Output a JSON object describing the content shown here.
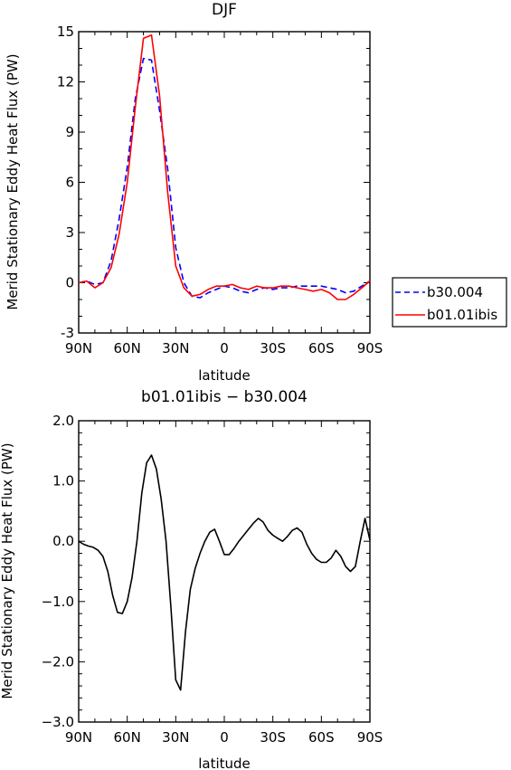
{
  "chart_data": [
    {
      "type": "line",
      "title": "DJF",
      "xlabel": "latitude",
      "ylabel": "Merid Stationary Eddy Heat Flux (PW)",
      "xlim": [
        90,
        -90
      ],
      "ylim": [
        -3,
        15
      ],
      "x_ticks": [
        90,
        60,
        30,
        0,
        -30,
        -60,
        -90
      ],
      "x_tick_labels": [
        "90N",
        "60N",
        "30N",
        "0",
        "30S",
        "60S",
        "90S"
      ],
      "y_ticks": [
        -3,
        0,
        3,
        6,
        9,
        12,
        15
      ],
      "y_tick_labels": [
        "-3",
        "0",
        "3",
        "6",
        "9",
        "12",
        "15"
      ],
      "grid": false,
      "legend_position": "right",
      "series": [
        {
          "name": "b30.004",
          "color": "#0000ff",
          "dash": "dashed",
          "x": [
            90,
            85,
            80,
            75,
            70,
            65,
            60,
            55,
            50,
            45,
            40,
            35,
            30,
            25,
            20,
            15,
            10,
            5,
            0,
            -5,
            -10,
            -15,
            -20,
            -25,
            -30,
            -35,
            -40,
            -45,
            -50,
            -55,
            -60,
            -65,
            -70,
            -75,
            -80,
            -85,
            -90
          ],
          "values": [
            0.0,
            0.1,
            -0.1,
            0.0,
            1.3,
            3.8,
            6.9,
            11.0,
            13.4,
            13.3,
            10.3,
            6.8,
            2.1,
            0.0,
            -0.8,
            -0.9,
            -0.6,
            -0.4,
            -0.2,
            -0.3,
            -0.5,
            -0.6,
            -0.4,
            -0.3,
            -0.4,
            -0.3,
            -0.3,
            -0.2,
            -0.2,
            -0.2,
            -0.2,
            -0.3,
            -0.4,
            -0.6,
            -0.5,
            -0.2,
            0.1
          ]
        },
        {
          "name": "b01.01ibis",
          "color": "#ff0000",
          "dash": "solid",
          "x": [
            90,
            85,
            80,
            75,
            70,
            65,
            60,
            55,
            50,
            45,
            40,
            35,
            30,
            25,
            20,
            15,
            10,
            5,
            0,
            -5,
            -10,
            -15,
            -20,
            -25,
            -30,
            -35,
            -40,
            -45,
            -50,
            -55,
            -60,
            -65,
            -70,
            -75,
            -80,
            -85,
            -90
          ],
          "values": [
            0.0,
            0.1,
            -0.3,
            0.0,
            0.9,
            2.9,
            6.0,
            10.5,
            14.6,
            14.8,
            11.2,
            5.4,
            1.0,
            -0.3,
            -0.8,
            -0.7,
            -0.4,
            -0.2,
            -0.2,
            -0.1,
            -0.3,
            -0.4,
            -0.2,
            -0.3,
            -0.3,
            -0.2,
            -0.2,
            -0.3,
            -0.4,
            -0.5,
            -0.4,
            -0.6,
            -1.0,
            -1.0,
            -0.7,
            -0.3,
            0.1
          ]
        }
      ]
    },
    {
      "type": "line",
      "title": "b01.01ibis − b30.004",
      "xlabel": "latitude",
      "ylabel": "Merid Stationary Eddy Heat Flux (PW)",
      "xlim": [
        90,
        -90
      ],
      "ylim": [
        -3.0,
        2.0
      ],
      "x_ticks": [
        90,
        60,
        30,
        0,
        -30,
        -60,
        -90
      ],
      "x_tick_labels": [
        "90N",
        "60N",
        "30N",
        "0",
        "30S",
        "60S",
        "90S"
      ],
      "y_ticks": [
        -3.0,
        -2.0,
        -1.0,
        0.0,
        1.0,
        2.0
      ],
      "y_tick_labels": [
        "−3.0",
        "−2.0",
        "−1.0",
        "0.0",
        "1.0",
        "2.0"
      ],
      "grid": false,
      "series": [
        {
          "color": "#000000",
          "dash": "solid",
          "x": [
            90,
            87,
            84,
            81,
            78,
            75,
            72,
            69,
            66,
            63,
            60,
            57,
            54,
            51,
            48,
            45,
            42,
            39,
            36,
            33,
            30,
            27,
            24,
            21,
            18,
            15,
            12,
            9,
            6,
            3,
            0,
            -3,
            -6,
            -9,
            -12,
            -15,
            -18,
            -21,
            -24,
            -27,
            -30,
            -33,
            -36,
            -39,
            -42,
            -45,
            -48,
            -51,
            -54,
            -57,
            -60,
            -63,
            -66,
            -69,
            -72,
            -75,
            -78,
            -81,
            -84,
            -87,
            -90
          ],
          "values": [
            0.0,
            -0.05,
            -0.08,
            -0.1,
            -0.15,
            -0.25,
            -0.5,
            -0.9,
            -1.18,
            -1.2,
            -1.0,
            -0.6,
            0.0,
            0.8,
            1.3,
            1.43,
            1.2,
            0.7,
            0.0,
            -1.1,
            -2.3,
            -2.47,
            -1.5,
            -0.8,
            -0.45,
            -0.2,
            0.0,
            0.15,
            0.2,
            0.0,
            -0.22,
            -0.22,
            -0.12,
            0.0,
            0.1,
            0.2,
            0.3,
            0.38,
            0.32,
            0.18,
            0.1,
            0.05,
            0.0,
            0.08,
            0.18,
            0.22,
            0.15,
            -0.05,
            -0.2,
            -0.3,
            -0.35,
            -0.35,
            -0.28,
            -0.15,
            -0.25,
            -0.42,
            -0.5,
            -0.42,
            0.0,
            0.38,
            0.02
          ]
        }
      ]
    }
  ]
}
